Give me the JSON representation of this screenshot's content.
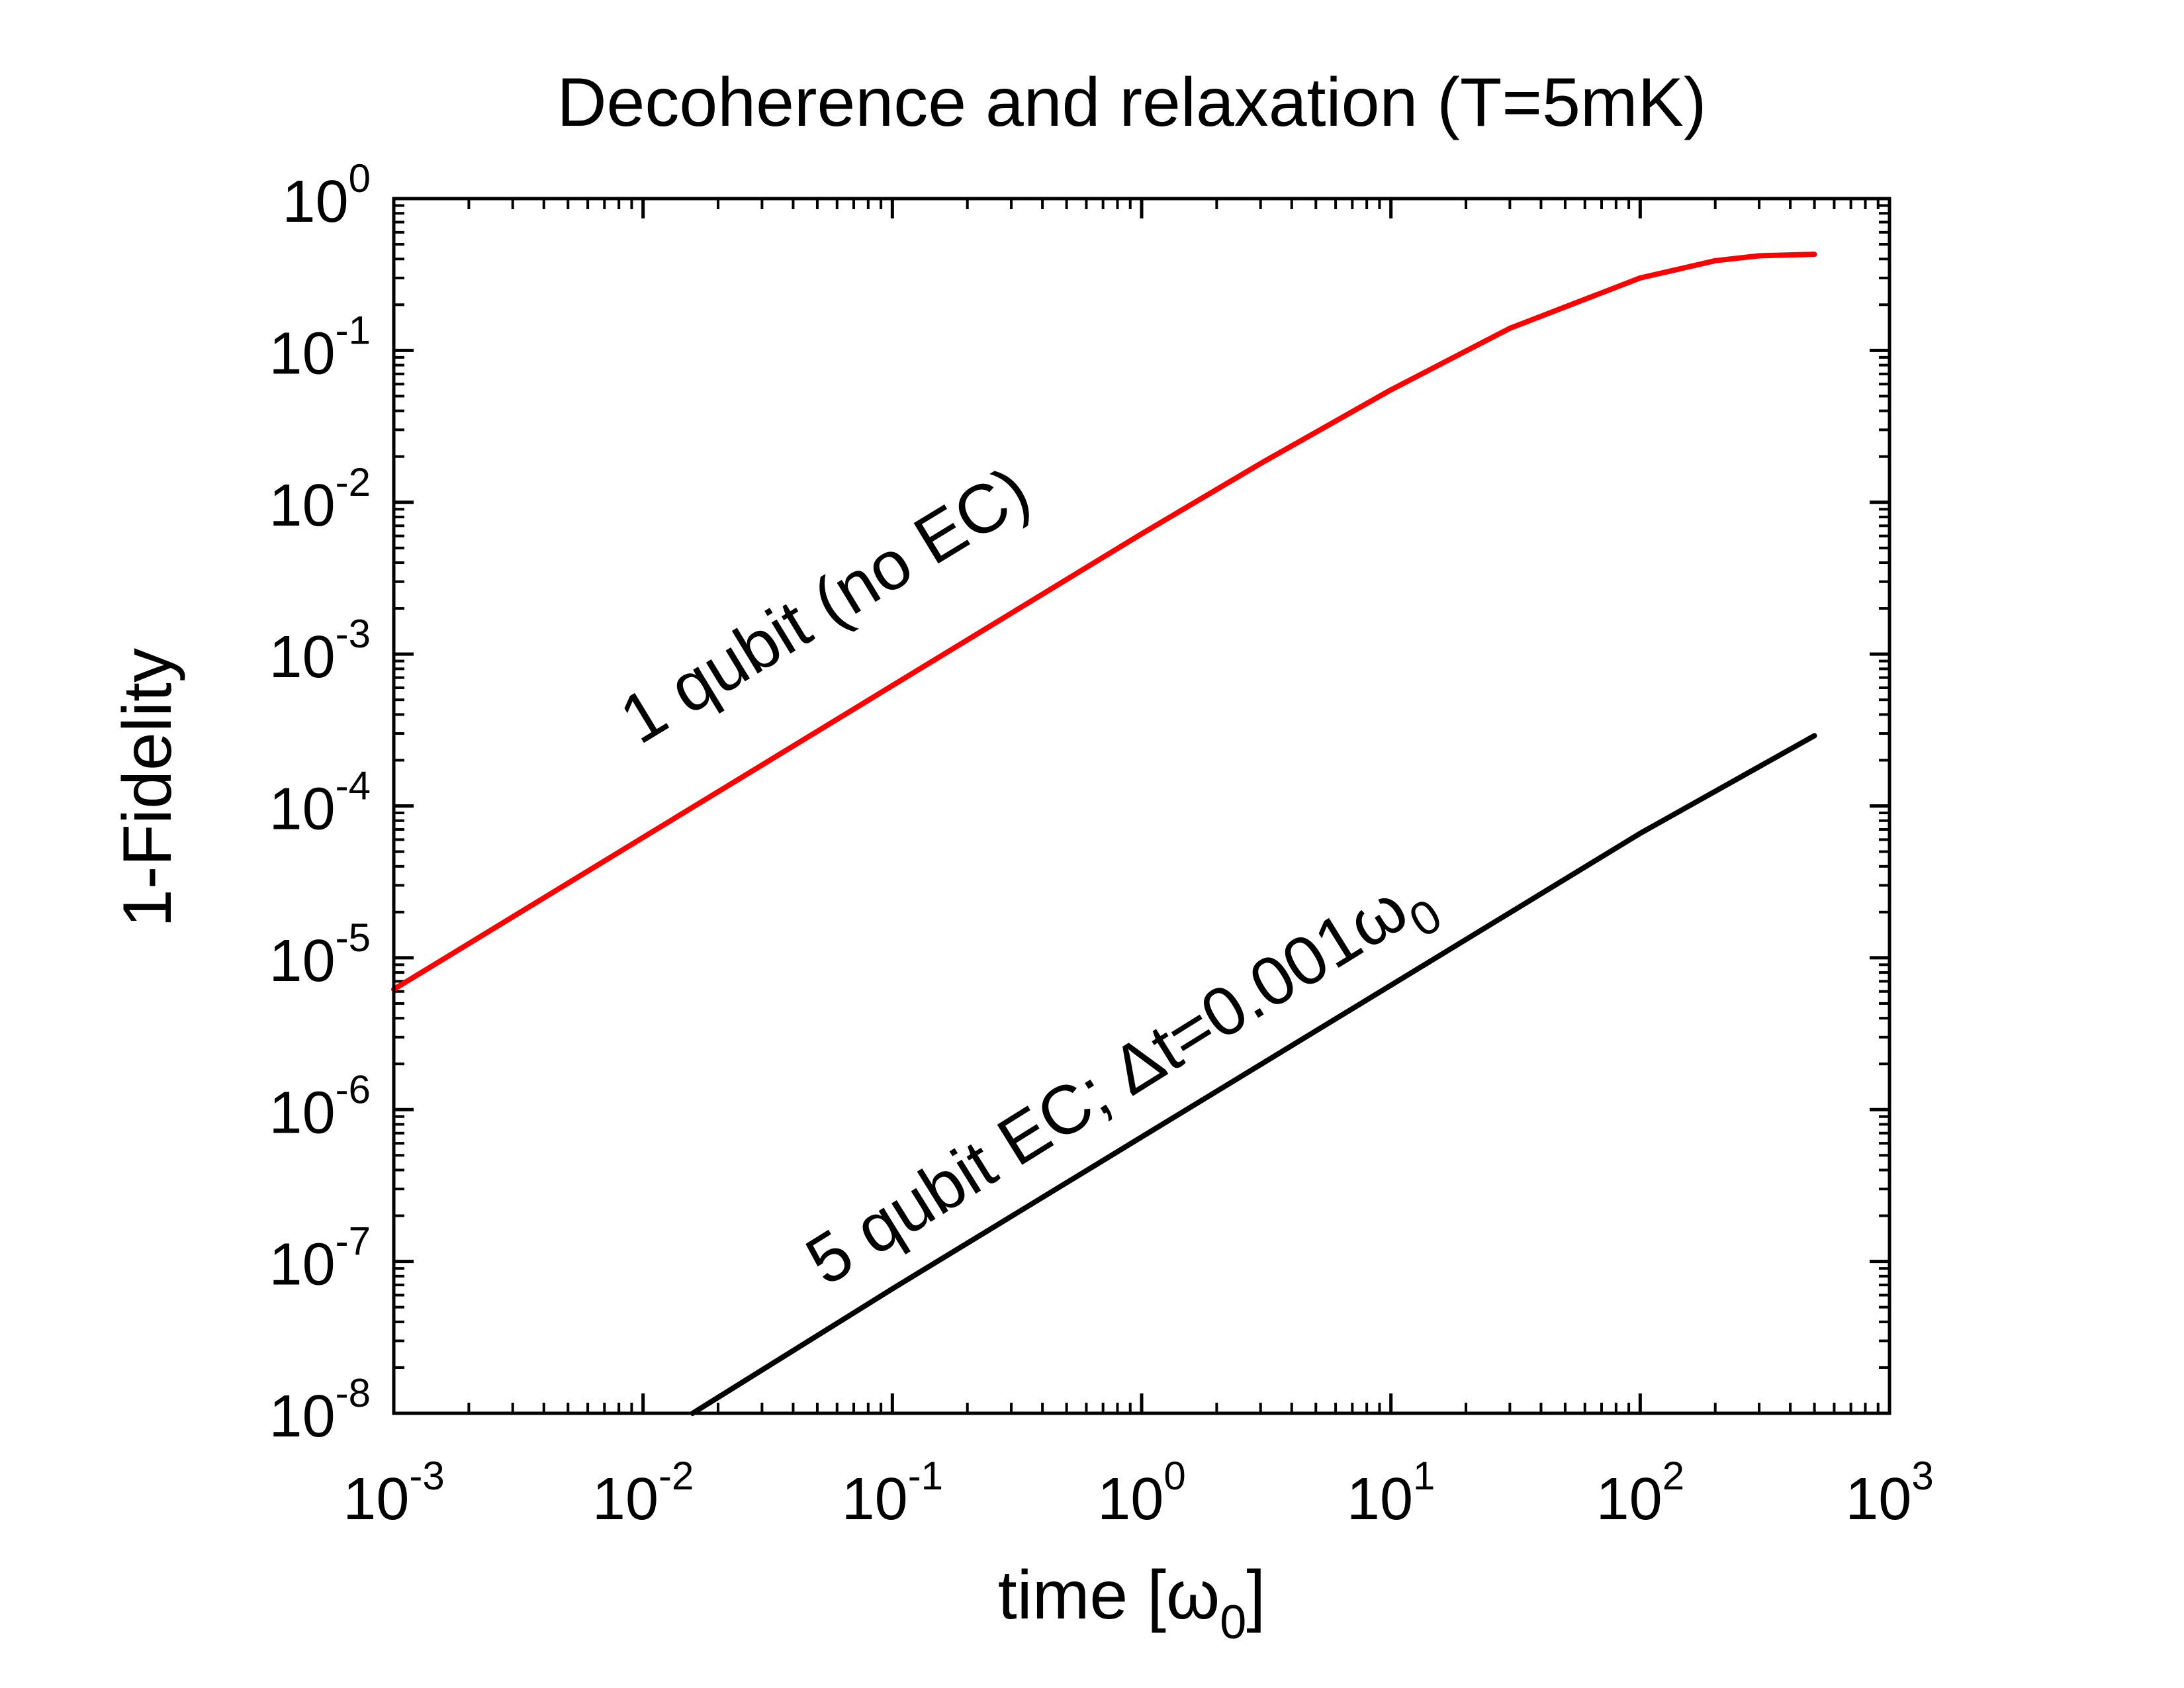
{
  "chart_data": {
    "type": "line",
    "title": "Decoherence and relaxation (T=5mK)",
    "xlabel_main": "time [ω",
    "xlabel_sub": "0",
    "xlabel_close": "]",
    "ylabel": "1-Fidelity",
    "x_scale": "log",
    "y_scale": "log",
    "xlim": [
      0.001,
      1000
    ],
    "ylim": [
      1e-08,
      1
    ],
    "x_ticks": [
      {
        "base": "10",
        "exp": "-3",
        "value": 0.001
      },
      {
        "base": "10",
        "exp": "-2",
        "value": 0.01
      },
      {
        "base": "10",
        "exp": "-1",
        "value": 0.1
      },
      {
        "base": "10",
        "exp": "0",
        "value": 1
      },
      {
        "base": "10",
        "exp": "1",
        "value": 10
      },
      {
        "base": "10",
        "exp": "2",
        "value": 100
      },
      {
        "base": "10",
        "exp": "3",
        "value": 1000
      }
    ],
    "y_ticks": [
      {
        "base": "10",
        "exp": "0",
        "value": 1
      },
      {
        "base": "10",
        "exp": "-1",
        "value": 0.1
      },
      {
        "base": "10",
        "exp": "-2",
        "value": 0.01
      },
      {
        "base": "10",
        "exp": "-3",
        "value": 0.001
      },
      {
        "base": "10",
        "exp": "-4",
        "value": 0.0001
      },
      {
        "base": "10",
        "exp": "-5",
        "value": 1e-05
      },
      {
        "base": "10",
        "exp": "-6",
        "value": 1e-06
      },
      {
        "base": "10",
        "exp": "-7",
        "value": 1e-07
      },
      {
        "base": "10",
        "exp": "-8",
        "value": 1e-08
      }
    ],
    "series": [
      {
        "name": "1 qubit (no EC)",
        "color": "#ff0000",
        "x": [
          0.001,
          0.01,
          0.1,
          1,
          3,
          10,
          30,
          100,
          200,
          300,
          500
        ],
        "y": [
          6.2e-06,
          6.2e-05,
          0.00062,
          0.0062,
          0.018,
          0.055,
          0.14,
          0.3,
          0.39,
          0.42,
          0.43
        ]
      },
      {
        "name": "5 qubit EC; Δt=0.001ω0",
        "color": "#000000",
        "x": [
          0.0158,
          0.1,
          1,
          10,
          100,
          500
        ],
        "y": [
          1e-08,
          6.6e-08,
          6.6e-07,
          6.6e-06,
          6.6e-05,
          0.00029
        ]
      }
    ],
    "annotations": [
      {
        "series": 0,
        "text": "1 qubit (no EC)",
        "at_x": 0.06,
        "at_y": 0.00155
      },
      {
        "series": 1,
        "text_main": "5 qubit EC; Δt=0.001ω",
        "text_sub": "0",
        "at_x": 0.9,
        "at_y": 1.2e-06
      }
    ]
  }
}
